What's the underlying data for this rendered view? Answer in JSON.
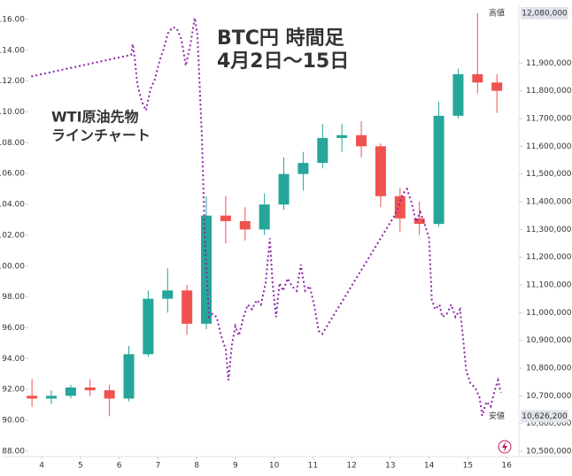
{
  "chart_data": {
    "type": "combo",
    "xlim": [
      3.61,
      16.18
    ],
    "xticks": [
      4,
      5,
      6,
      7,
      8,
      9,
      10,
      11,
      12,
      13,
      14,
      15,
      16
    ],
    "ylim": [
      87.65,
      116.8
    ],
    "yticks": [
      {
        "value": 88,
        "label": "88.00"
      },
      {
        "value": 90,
        "label": "90.00"
      },
      {
        "value": 92,
        "label": "92.00"
      },
      {
        "value": 94,
        "label": "94.00"
      },
      {
        "value": 96,
        "label": "96.00"
      },
      {
        "value": 98,
        "label": "98.00"
      },
      {
        "value": 100,
        "label": "100.00"
      },
      {
        "value": 102,
        "label": "102.00"
      },
      {
        "value": 104,
        "label": "104.00"
      },
      {
        "value": 106,
        "label": "106.00"
      },
      {
        "value": 108,
        "label": "108.00"
      },
      {
        "value": 110,
        "label": "110.00"
      },
      {
        "value": 112,
        "label": "112.00"
      },
      {
        "value": 114,
        "label": "114.00"
      },
      {
        "value": 116,
        "label": "116.00"
      }
    ],
    "y2lim": [
      10481000,
      12102000
    ],
    "y2ticks": [
      {
        "value": 10500000,
        "label": "10,500,000"
      },
      {
        "value": 10600000,
        "label": "10,600,000"
      },
      {
        "value": 10700000,
        "label": "10,700,000"
      },
      {
        "value": 10800000,
        "label": "10,800,000"
      },
      {
        "value": 10900000,
        "label": "10,900,000"
      },
      {
        "value": 11000000,
        "label": "11,000,000"
      },
      {
        "value": 11100000,
        "label": "11,100,000"
      },
      {
        "value": 11200000,
        "label": "11,200,000"
      },
      {
        "value": 11300000,
        "label": "11,300,000"
      },
      {
        "value": 11400000,
        "label": "11,400,000"
      },
      {
        "value": 11500000,
        "label": "11,500,000"
      },
      {
        "value": 11600000,
        "label": "11,600,000"
      },
      {
        "value": 11700000,
        "label": "11,700,000"
      },
      {
        "value": 11800000,
        "label": "11,800,000"
      },
      {
        "value": 11900000,
        "label": "11,900,000"
      }
    ],
    "annotations": [
      {
        "text": "BTC円 時間足",
        "color": "#f57c00"
      },
      {
        "text": "4月2日～15日",
        "color": "#f57c00"
      },
      {
        "text": "WTI原油先物",
        "color": "#c2185b"
      },
      {
        "text": "ラインチャート",
        "color": "#c2185b"
      }
    ],
    "high_label": {
      "title": "高値",
      "value": {
        "value": 12080000,
        "label": "12,080,000"
      }
    },
    "low_label": {
      "title": "安値",
      "value": {
        "value": 10626200,
        "label": "10,626,200"
      }
    },
    "series": [
      {
        "type": "candlestick",
        "axis": "y2",
        "up_color": "#26a69a",
        "down_color": "#ef5350",
        "x": [
          3.75,
          4.25,
          4.75,
          5.25,
          5.75,
          6.25,
          6.75,
          7.25,
          7.75,
          8.25,
          8.75,
          9.25,
          9.75,
          10.25,
          10.75,
          11.25,
          11.75,
          12.25,
          12.75,
          13.25,
          13.75,
          14.25,
          14.75,
          15.25,
          15.75
        ],
        "open": [
          10700000,
          10690000,
          10700000,
          10730000,
          10720000,
          10690000,
          10850000,
          11050000,
          11080000,
          10960000,
          11350000,
          11330000,
          11300000,
          11390000,
          11500000,
          11540000,
          11630000,
          11640000,
          11600000,
          11420000,
          11340000,
          11320000,
          11710000,
          11860000,
          11830000
        ],
        "high": [
          10760000,
          10720000,
          10740000,
          10760000,
          10740000,
          10880000,
          11080000,
          11160000,
          11100000,
          11420000,
          11420000,
          11380000,
          11430000,
          11560000,
          11580000,
          11680000,
          11680000,
          11690000,
          11610000,
          11450000,
          11400000,
          11760000,
          11880000,
          12080000,
          11860000
        ],
        "low": [
          10660000,
          10670000,
          10690000,
          10700000,
          10626200,
          10680000,
          10840000,
          11000000,
          10920000,
          10940000,
          11250000,
          11260000,
          11280000,
          11370000,
          11440000,
          11520000,
          11580000,
          11560000,
          11380000,
          11290000,
          11280000,
          11310000,
          11700000,
          11790000,
          11720000
        ],
        "close": [
          10690000,
          10700000,
          10730000,
          10720000,
          10690000,
          10850000,
          11050000,
          11080000,
          10960000,
          11350000,
          11330000,
          11300000,
          11390000,
          11500000,
          11540000,
          11630000,
          11640000,
          11600000,
          11420000,
          11340000,
          11320000,
          11710000,
          11860000,
          11830000,
          11800000
        ]
      },
      {
        "type": "line",
        "axis": "y",
        "color": "#8e24aa",
        "dashed": true,
        "x": [
          3.73,
          6.31,
          6.35,
          6.4,
          6.47,
          6.58,
          6.69,
          6.81,
          6.92,
          7.04,
          7.15,
          7.26,
          7.38,
          7.49,
          7.61,
          7.72,
          7.84,
          7.95,
          8.02,
          8.13,
          8.22,
          8.32,
          8.41,
          8.52,
          8.63,
          8.75,
          8.82,
          8.91,
          9.0,
          9.09,
          9.21,
          9.32,
          9.43,
          9.55,
          9.66,
          9.78,
          9.89,
          9.96,
          10.05,
          10.14,
          10.23,
          10.35,
          10.46,
          10.58,
          10.69,
          10.8,
          10.92,
          11.03,
          11.15,
          11.24,
          12.97,
          13.09,
          13.2,
          13.32,
          13.43,
          13.55,
          13.66,
          13.77,
          13.89,
          14.0,
          14.07,
          14.16,
          14.27,
          14.34,
          14.46,
          14.57,
          14.68,
          14.8,
          14.87,
          14.96,
          15.07,
          15.19,
          15.3,
          15.37,
          15.48,
          15.59,
          15.71,
          15.78,
          15.85
        ],
        "values": [
          112.3,
          113.7,
          114.4,
          113.5,
          111.8,
          110.7,
          110.1,
          111.5,
          112.1,
          113.3,
          114.1,
          115.1,
          115.5,
          115.4,
          114.7,
          113.0,
          114.4,
          116.1,
          115.0,
          108.7,
          101.2,
          96.7,
          96.9,
          96.7,
          95.5,
          94.6,
          92.6,
          94.9,
          96.1,
          95.5,
          96.7,
          97.5,
          97.2,
          97.8,
          97.5,
          98.9,
          101.8,
          98.9,
          96.7,
          98.9,
          98.4,
          99.2,
          98.7,
          98.4,
          100.1,
          98.4,
          98.7,
          97.5,
          95.8,
          95.6,
          102.7,
          103.2,
          103.8,
          104.7,
          105.0,
          104.1,
          102.9,
          103.5,
          102.7,
          101.8,
          97.8,
          97.2,
          97.5,
          96.7,
          96.9,
          97.5,
          96.7,
          97.2,
          95.5,
          93.2,
          92.4,
          92.1,
          91.5,
          90.3,
          91.2,
          90.9,
          92.1,
          92.6,
          91.8
        ]
      }
    ]
  }
}
